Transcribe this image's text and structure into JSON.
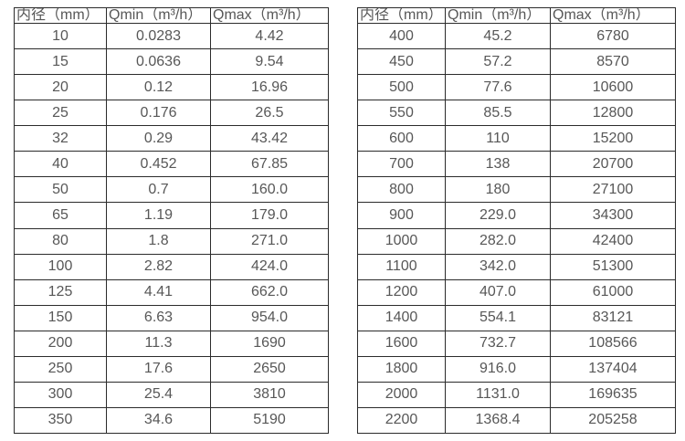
{
  "page": {
    "background": "#ffffff",
    "border_color": "#2b2b2b",
    "text_color": "#575757",
    "description": "水表口径流量范围对照表"
  },
  "tables": [
    {
      "name": "flow-rate-table-small-diameters",
      "headers": [
        "内径（mm）",
        "Qmin（m³/h）",
        "Qmax（m³/h）"
      ],
      "rows": [
        [
          "10",
          "0.0283",
          "4.42"
        ],
        [
          "15",
          "0.0636",
          "9.54"
        ],
        [
          "20",
          "0.12",
          "16.96"
        ],
        [
          "25",
          "0.176",
          "26.5"
        ],
        [
          "32",
          "0.29",
          "43.42"
        ],
        [
          "40",
          "0.452",
          "67.85"
        ],
        [
          "50",
          "0.7",
          "160.0"
        ],
        [
          "65",
          "1.19",
          "179.0"
        ],
        [
          "80",
          "1.8",
          "271.0"
        ],
        [
          "100",
          "2.82",
          "424.0"
        ],
        [
          "125",
          "4.41",
          "662.0"
        ],
        [
          "150",
          "6.63",
          "954.0"
        ],
        [
          "200",
          "11.3",
          "1690"
        ],
        [
          "250",
          "17.6",
          "2650"
        ],
        [
          "300",
          "25.4",
          "3810"
        ],
        [
          "350",
          "34.6",
          "5190"
        ]
      ]
    },
    {
      "name": "flow-rate-table-large-diameters",
      "headers": [
        "内径（mm）",
        "Qmin（m³/h）",
        "Qmax（m³/h）"
      ],
      "rows": [
        [
          "400",
          "45.2",
          "6780"
        ],
        [
          "450",
          "57.2",
          "8570"
        ],
        [
          "500",
          "77.6",
          "10600"
        ],
        [
          "550",
          "85.5",
          "12800"
        ],
        [
          "600",
          "110",
          "15200"
        ],
        [
          "700",
          "138",
          "20700"
        ],
        [
          "800",
          "180",
          "27100"
        ],
        [
          "900",
          "229.0",
          "34300"
        ],
        [
          "1000",
          "282.0",
          "42400"
        ],
        [
          "1100",
          "342.0",
          "51300"
        ],
        [
          "1200",
          "407.0",
          "61000"
        ],
        [
          "1400",
          "554.1",
          "83121"
        ],
        [
          "1600",
          "732.7",
          "108566"
        ],
        [
          "1800",
          "916.0",
          "137404"
        ],
        [
          "2000",
          "1131.0",
          "169635"
        ],
        [
          "2200",
          "1368.4",
          "205258"
        ]
      ]
    }
  ]
}
